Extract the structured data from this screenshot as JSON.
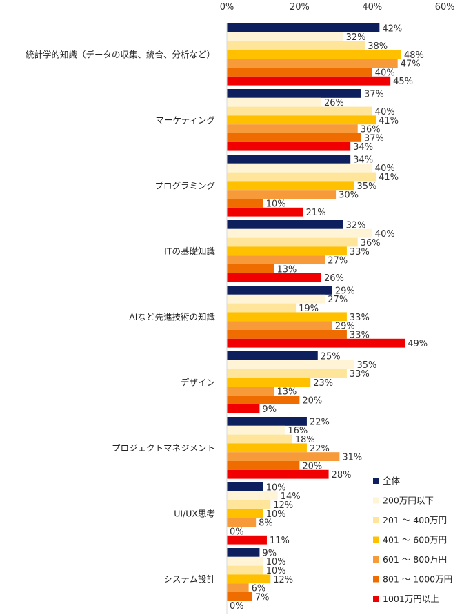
{
  "chart_data": {
    "type": "bar",
    "orientation": "horizontal",
    "xlim": [
      0,
      60
    ],
    "x_ticks": [
      "0%",
      "20%",
      "40%",
      "60%"
    ],
    "grid": false,
    "legend_position": "bottom-right",
    "categories": [
      "統計学的知識（データの収集、統合、分析など）",
      "マーケティング",
      "プログラミング",
      "ITの基礎知識",
      "AIなど先進技術の知識",
      "デザイン",
      "プロジェクトマネジメント",
      "UI/UX思考",
      "システム設計"
    ],
    "series": [
      {
        "name": "全体",
        "color": "#0d1f5c",
        "values": [
          42,
          37,
          34,
          32,
          29,
          25,
          22,
          10,
          9
        ]
      },
      {
        "name": "200万円以下",
        "color": "#fff5d6",
        "values": [
          32,
          26,
          40,
          40,
          27,
          35,
          16,
          14,
          10
        ]
      },
      {
        "name": "201 ～ 400万円",
        "color": "#ffe59a",
        "values": [
          38,
          40,
          41,
          36,
          19,
          33,
          18,
          12,
          10
        ]
      },
      {
        "name": "401 ～ 600万円",
        "color": "#ffc000",
        "values": [
          48,
          41,
          35,
          33,
          33,
          23,
          22,
          10,
          12
        ]
      },
      {
        "name": "601 ～ 800万円",
        "color": "#f79a3a",
        "values": [
          47,
          36,
          30,
          27,
          29,
          13,
          31,
          8,
          6
        ]
      },
      {
        "name": "801 ～ 1000万円",
        "color": "#ef6c00",
        "values": [
          40,
          37,
          10,
          13,
          33,
          20,
          20,
          0,
          7
        ]
      },
      {
        "name": "1001万円以上",
        "color": "#f00000",
        "values": [
          45,
          34,
          21,
          26,
          49,
          9,
          28,
          11,
          0
        ]
      }
    ],
    "value_suffix": "%"
  }
}
